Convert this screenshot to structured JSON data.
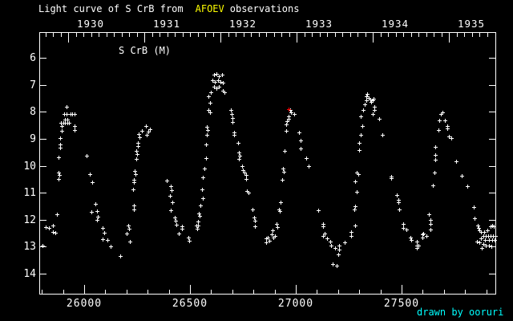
{
  "title": {
    "text_before": "Light curve of S CrB from",
    "highlight": "AFOEV",
    "text_after": "observations"
  },
  "plot_label": "S CrB (M)",
  "credit": "drawn by ooruri",
  "colors": {
    "background": "#000000",
    "text": "#ffffff",
    "highlight": "#ffff00",
    "credit": "#00ffff",
    "axis": "#ffffff",
    "marker": "#ffffff",
    "special_marker": "#ff0000"
  },
  "chart_data": {
    "type": "scatter",
    "title": "Light curve of S CrB from AFOEV observations",
    "series_label": "S CrB (M)",
    "legend_position": "none",
    "grid": false,
    "marker": "plus",
    "x_top_axis": {
      "tick_years": [
        1930,
        1931,
        1932,
        1933,
        1934,
        1935
      ]
    },
    "x_bottom_axis": {
      "major_ticks": [
        26000,
        26500,
        27000,
        27500
      ],
      "minor_tick_step": 100,
      "range": [
        25788,
        27943
      ]
    },
    "y_axis": {
      "ticks": [
        6,
        7,
        8,
        9,
        10,
        11,
        12,
        13,
        14
      ],
      "range": [
        5.05,
        14.74
      ],
      "inverted": true
    },
    "points": [
      [
        25803,
        12.96
      ],
      [
        25818,
        12.28
      ],
      [
        25833,
        12.31
      ],
      [
        25852,
        12.22
      ],
      [
        25852,
        12.46
      ],
      [
        25864,
        12.49
      ],
      [
        25871,
        11.81
      ],
      [
        25879,
        9.7
      ],
      [
        25879,
        10.24
      ],
      [
        25883,
        10.33
      ],
      [
        25879,
        10.5
      ],
      [
        25886,
        8.96
      ],
      [
        25886,
        9.2
      ],
      [
        25886,
        9.32
      ],
      [
        25890,
        8.4
      ],
      [
        25894,
        8.52
      ],
      [
        25894,
        8.7
      ],
      [
        25901,
        8.4
      ],
      [
        25905,
        8.07
      ],
      [
        25909,
        8.28
      ],
      [
        25909,
        8.4
      ],
      [
        25917,
        7.81
      ],
      [
        25917,
        8.07
      ],
      [
        25920,
        8.28
      ],
      [
        25920,
        8.4
      ],
      [
        25928,
        8.4
      ],
      [
        25936,
        8.07
      ],
      [
        25943,
        8.07
      ],
      [
        25955,
        8.07
      ],
      [
        25955,
        8.52
      ],
      [
        25955,
        8.67
      ],
      [
        26011,
        9.64
      ],
      [
        26027,
        10.3
      ],
      [
        26038,
        10.62
      ],
      [
        26053,
        11.42
      ],
      [
        26034,
        11.72
      ],
      [
        26061,
        11.69
      ],
      [
        26064,
        11.9
      ],
      [
        26061,
        12.01
      ],
      [
        26087,
        12.31
      ],
      [
        26095,
        12.49
      ],
      [
        26087,
        12.73
      ],
      [
        26110,
        12.76
      ],
      [
        26125,
        12.99
      ],
      [
        26170,
        13.35
      ],
      [
        26201,
        12.52
      ],
      [
        26208,
        12.22
      ],
      [
        26212,
        12.34
      ],
      [
        26216,
        12.81
      ],
      [
        26231,
        10.89
      ],
      [
        26235,
        10.53
      ],
      [
        26235,
        10.62
      ],
      [
        26235,
        11.48
      ],
      [
        26235,
        11.63
      ],
      [
        26239,
        10.18
      ],
      [
        26242,
        10.3
      ],
      [
        26246,
        9.44
      ],
      [
        26250,
        9.56
      ],
      [
        26246,
        9.76
      ],
      [
        26254,
        9.14
      ],
      [
        26254,
        9.26
      ],
      [
        26258,
        8.81
      ],
      [
        26261,
        8.93
      ],
      [
        26273,
        8.7
      ],
      [
        26292,
        8.52
      ],
      [
        26296,
        8.84
      ],
      [
        26303,
        8.73
      ],
      [
        26311,
        8.64
      ],
      [
        26390,
        10.56
      ],
      [
        26405,
        11.1
      ],
      [
        26409,
        10.77
      ],
      [
        26409,
        11.66
      ],
      [
        26413,
        10.92
      ],
      [
        26417,
        11.36
      ],
      [
        26428,
        11.93
      ],
      [
        26432,
        12.04
      ],
      [
        26436,
        12.19
      ],
      [
        26447,
        12.52
      ],
      [
        26462,
        12.25
      ],
      [
        26462,
        12.34
      ],
      [
        26492,
        12.67
      ],
      [
        26496,
        12.79
      ],
      [
        26530,
        12.22
      ],
      [
        26534,
        12.34
      ],
      [
        26538,
        12.07
      ],
      [
        26538,
        12.22
      ],
      [
        26542,
        11.78
      ],
      [
        26546,
        11.87
      ],
      [
        26549,
        11.48
      ],
      [
        26557,
        10.89
      ],
      [
        26561,
        10.44
      ],
      [
        26561,
        11.19
      ],
      [
        26568,
        10.09
      ],
      [
        26576,
        9.2
      ],
      [
        26576,
        9.73
      ],
      [
        26580,
        8.55
      ],
      [
        26580,
        8.84
      ],
      [
        26583,
        8.67
      ],
      [
        26587,
        7.42
      ],
      [
        26595,
        7.66
      ],
      [
        26587,
        7.93
      ],
      [
        26595,
        8.01
      ],
      [
        26599,
        7.27
      ],
      [
        26606,
        6.83
      ],
      [
        26614,
        6.62
      ],
      [
        26614,
        7.07
      ],
      [
        26617,
        6.89
      ],
      [
        26625,
        6.59
      ],
      [
        26625,
        7.13
      ],
      [
        26633,
        6.83
      ],
      [
        26636,
        6.68
      ],
      [
        26636,
        7.07
      ],
      [
        26644,
        6.89
      ],
      [
        26652,
        6.62
      ],
      [
        26655,
        6.92
      ],
      [
        26655,
        7.21
      ],
      [
        26663,
        7.27
      ],
      [
        26693,
        7.93
      ],
      [
        26697,
        8.07
      ],
      [
        26701,
        8.22
      ],
      [
        26701,
        8.37
      ],
      [
        26708,
        8.76
      ],
      [
        26708,
        8.84
      ],
      [
        26727,
        9.14
      ],
      [
        26731,
        9.5
      ],
      [
        26735,
        9.64
      ],
      [
        26731,
        9.76
      ],
      [
        26746,
        10.0
      ],
      [
        26750,
        10.15
      ],
      [
        26758,
        10.24
      ],
      [
        26765,
        10.33
      ],
      [
        26765,
        10.5
      ],
      [
        26769,
        10.95
      ],
      [
        26777,
        11.01
      ],
      [
        26795,
        11.63
      ],
      [
        26803,
        11.93
      ],
      [
        26807,
        12.04
      ],
      [
        26807,
        12.25
      ],
      [
        26860,
        12.7
      ],
      [
        26860,
        12.85
      ],
      [
        26868,
        12.67
      ],
      [
        26875,
        12.79
      ],
      [
        26887,
        12.55
      ],
      [
        26890,
        12.4
      ],
      [
        26894,
        12.67
      ],
      [
        26902,
        12.61
      ],
      [
        26909,
        12.16
      ],
      [
        26913,
        12.28
      ],
      [
        26921,
        11.63
      ],
      [
        26924,
        11.69
      ],
      [
        26928,
        11.36
      ],
      [
        26936,
        10.53
      ],
      [
        26940,
        10.09
      ],
      [
        26943,
        10.21
      ],
      [
        26947,
        9.44
      ],
      [
        26955,
        8.7
      ],
      [
        26955,
        8.46
      ],
      [
        26958,
        8.34
      ],
      [
        26966,
        8.16
      ],
      [
        26966,
        8.25
      ],
      [
        26974,
        7.93
      ],
      [
        26977,
        8.01
      ],
      [
        26992,
        8.07
      ],
      [
        27015,
        8.76
      ],
      [
        27023,
        9.05
      ],
      [
        27023,
        9.35
      ],
      [
        27049,
        9.73
      ],
      [
        27061,
        10.0
      ],
      [
        27106,
        11.66
      ],
      [
        27129,
        12.16
      ],
      [
        27129,
        12.25
      ],
      [
        27136,
        12.52
      ],
      [
        27129,
        12.61
      ],
      [
        27148,
        12.7
      ],
      [
        27163,
        12.81
      ],
      [
        27167,
        12.96
      ],
      [
        27186,
        13.05
      ],
      [
        27174,
        13.64
      ],
      [
        27193,
        13.7
      ],
      [
        27204,
        12.96
      ],
      [
        27204,
        13.11
      ],
      [
        27201,
        13.29
      ],
      [
        27231,
        12.85
      ],
      [
        27261,
        12.46
      ],
      [
        27261,
        12.61
      ],
      [
        27280,
        12.22
      ],
      [
        27276,
        11.63
      ],
      [
        27280,
        11.51
      ],
      [
        27288,
        10.98
      ],
      [
        27280,
        10.59
      ],
      [
        27295,
        10.3
      ],
      [
        27288,
        10.24
      ],
      [
        27299,
        9.41
      ],
      [
        27299,
        9.14
      ],
      [
        27307,
        8.84
      ],
      [
        27314,
        8.52
      ],
      [
        27307,
        8.16
      ],
      [
        27318,
        7.93
      ],
      [
        27326,
        7.72
      ],
      [
        27333,
        7.42
      ],
      [
        27333,
        7.57
      ],
      [
        27337,
        7.33
      ],
      [
        27345,
        7.48
      ],
      [
        27352,
        7.54
      ],
      [
        27356,
        7.63
      ],
      [
        27364,
        7.57
      ],
      [
        27371,
        7.81
      ],
      [
        27371,
        7.93
      ],
      [
        27364,
        8.07
      ],
      [
        27368,
        7.51
      ],
      [
        27394,
        8.25
      ],
      [
        27409,
        8.84
      ],
      [
        27451,
        10.39
      ],
      [
        27451,
        10.47
      ],
      [
        27477,
        11.07
      ],
      [
        27485,
        11.27
      ],
      [
        27485,
        11.36
      ],
      [
        27489,
        11.63
      ],
      [
        27508,
        12.16
      ],
      [
        27508,
        12.31
      ],
      [
        27523,
        12.37
      ],
      [
        27542,
        12.67
      ],
      [
        27545,
        12.76
      ],
      [
        27572,
        12.81
      ],
      [
        27572,
        12.96
      ],
      [
        27572,
        13.05
      ],
      [
        27580,
        12.96
      ],
      [
        27599,
        12.55
      ],
      [
        27599,
        12.67
      ],
      [
        27602,
        12.52
      ],
      [
        27617,
        12.61
      ],
      [
        27629,
        11.81
      ],
      [
        27636,
        12.01
      ],
      [
        27636,
        12.16
      ],
      [
        27636,
        12.37
      ],
      [
        27648,
        10.74
      ],
      [
        27655,
        10.24
      ],
      [
        27659,
        9.79
      ],
      [
        27659,
        9.59
      ],
      [
        27659,
        9.29
      ],
      [
        27674,
        8.67
      ],
      [
        27678,
        8.31
      ],
      [
        27686,
        8.07
      ],
      [
        27693,
        8.01
      ],
      [
        27705,
        8.31
      ],
      [
        27716,
        8.52
      ],
      [
        27716,
        8.61
      ],
      [
        27723,
        8.9
      ],
      [
        27735,
        8.96
      ],
      [
        27757,
        9.85
      ],
      [
        27784,
        10.36
      ],
      [
        27810,
        10.77
      ],
      [
        27841,
        11.54
      ],
      [
        27844,
        11.96
      ],
      [
        27856,
        12.81
      ],
      [
        27860,
        12.22
      ],
      [
        27863,
        12.31
      ],
      [
        27867,
        12.4
      ],
      [
        27867,
        12.85
      ],
      [
        27875,
        12.46
      ],
      [
        27875,
        12.7
      ],
      [
        27879,
        13.05
      ],
      [
        27886,
        12.61
      ],
      [
        27886,
        12.9
      ],
      [
        27890,
        12.46
      ],
      [
        27894,
        12.76
      ],
      [
        27898,
        12.61
      ],
      [
        27898,
        12.96
      ],
      [
        27905,
        12.4
      ],
      [
        27909,
        12.61
      ],
      [
        27913,
        12.76
      ],
      [
        27913,
        12.96
      ],
      [
        27920,
        12.25
      ],
      [
        27920,
        12.61
      ],
      [
        27924,
        12.99
      ],
      [
        27928,
        12.22
      ],
      [
        27928,
        12.76
      ],
      [
        27932,
        12.61
      ],
      [
        27935,
        12.25
      ],
      [
        27939,
        12.76
      ],
      [
        27943,
        12.61
      ]
    ],
    "special_point": {
      "jd": 26967,
      "mag": 7.9,
      "color": "#ff0000"
    }
  }
}
